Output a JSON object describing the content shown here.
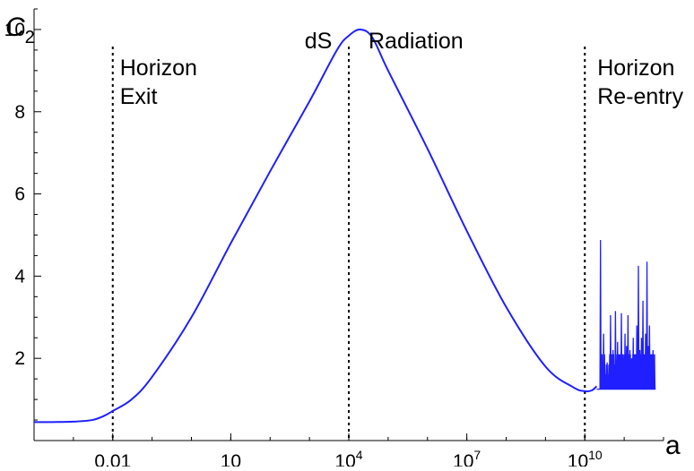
{
  "chart_data": {
    "type": "line",
    "title": "",
    "xlabel": "a",
    "ylabel": "C₂",
    "ylabel_main": "C",
    "ylabel_sub": "2",
    "x_scale": "log",
    "xlim": [
      0.0001,
      1000000000000.0
    ],
    "ylim": [
      0,
      10.5
    ],
    "x_ticks": [
      {
        "value": 0.01,
        "base": "0.01",
        "exp": ""
      },
      {
        "value": 10,
        "base": "10",
        "exp": ""
      },
      {
        "value": 10000,
        "base": "10",
        "exp": "4"
      },
      {
        "value": 10000000,
        "base": "10",
        "exp": "7"
      },
      {
        "value": 10000000000,
        "base": "10",
        "exp": "10"
      }
    ],
    "y_ticks": [
      {
        "value": 2,
        "label": "2"
      },
      {
        "value": 4,
        "label": "4"
      },
      {
        "value": 6,
        "label": "6"
      },
      {
        "value": 8,
        "label": "8"
      },
      {
        "value": 10,
        "label": "10"
      }
    ],
    "grid": false,
    "vlines": [
      {
        "x": 0.01,
        "style": "dotted"
      },
      {
        "x": 10000,
        "style": "dotted"
      },
      {
        "x": 10000000000,
        "style": "dotted"
      }
    ],
    "annotations": [
      {
        "lines": [
          "Horizon",
          "Exit"
        ],
        "x": 0.01
      },
      {
        "lines": [
          "dS"
        ],
        "x": 10000
      },
      {
        "lines": [
          "Radiation"
        ],
        "x": 10000
      },
      {
        "lines": [
          "Horizon",
          "Re-entry"
        ],
        "x": 10000000000
      }
    ],
    "series": [
      {
        "color": "#1f1fff",
        "points": [
          [
            0.0001,
            0.45
          ],
          [
            0.0003,
            0.45
          ],
          [
            0.001,
            0.46
          ],
          [
            0.003,
            0.5
          ],
          [
            0.006,
            0.6
          ],
          [
            0.01,
            0.72
          ],
          [
            0.03,
            1.0
          ],
          [
            0.1,
            1.55
          ],
          [
            1,
            3.0
          ],
          [
            10,
            4.8
          ],
          [
            100,
            6.55
          ],
          [
            1000,
            8.25
          ],
          [
            5000,
            9.5
          ],
          [
            10000,
            9.85
          ],
          [
            20000,
            10.0
          ],
          [
            40000,
            9.8
          ],
          [
            100000,
            9.0
          ],
          [
            1000000,
            7.1
          ],
          [
            10000000,
            5.1
          ],
          [
            100000000,
            3.25
          ],
          [
            1000000000,
            1.8
          ],
          [
            5000000000,
            1.3
          ],
          [
            10000000000,
            1.2
          ],
          [
            15000000000,
            1.22
          ],
          [
            20000000000,
            1.32
          ]
        ],
        "oscillation": {
          "x_start": 20000000000,
          "x_end": 600000000000,
          "baseline": 1.25,
          "peaks": [
            [
              25000000000,
              4.88
            ],
            [
              30000000000,
              2.6
            ],
            [
              37000000000,
              1.9
            ],
            [
              45000000000,
              3.05
            ],
            [
              52000000000,
              2.2
            ],
            [
              60000000000,
              3.15
            ],
            [
              68000000000,
              2.4
            ],
            [
              76000000000,
              2.1
            ],
            [
              85000000000,
              3.1
            ],
            [
              95000000000,
              2.0
            ],
            [
              105000000000,
              2.6
            ],
            [
              115000000000,
              2.3
            ],
            [
              125000000000,
              3.05
            ],
            [
              140000000000,
              2.2
            ],
            [
              155000000000,
              2.0
            ],
            [
              170000000000,
              2.5
            ],
            [
              190000000000,
              2.1
            ],
            [
              210000000000,
              2.8
            ],
            [
              230000000000,
              4.25
            ],
            [
              250000000000,
              2.2
            ],
            [
              275000000000,
              2.5
            ],
            [
              300000000000,
              3.4
            ],
            [
              325000000000,
              2.0
            ],
            [
              350000000000,
              2.6
            ],
            [
              380000000000,
              4.35
            ],
            [
              410000000000,
              2.3
            ],
            [
              440000000000,
              2.8
            ],
            [
              470000000000,
              2.1
            ],
            [
              500000000000,
              1.9
            ],
            [
              540000000000,
              2.2
            ],
            [
              580000000000,
              1.8
            ]
          ]
        }
      }
    ]
  }
}
